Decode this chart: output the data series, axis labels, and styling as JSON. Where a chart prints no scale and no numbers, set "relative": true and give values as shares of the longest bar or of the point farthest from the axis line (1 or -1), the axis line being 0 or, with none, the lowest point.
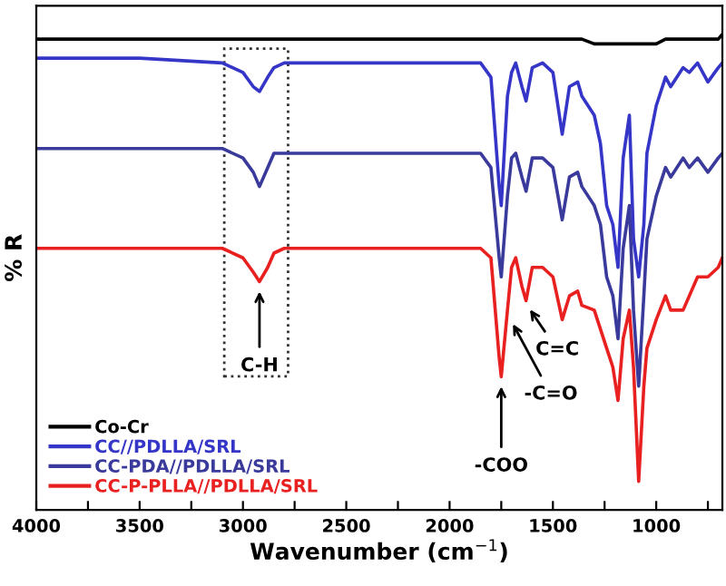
{
  "chart_data": {
    "type": "line",
    "relative": true,
    "xlabel": "Wavenumber (cm$^{−1}$)",
    "ylabel": "% R",
    "x": [
      4000,
      3500,
      3100,
      3000,
      2950,
      2920,
      2880,
      2850,
      2800,
      2000,
      1850,
      1800,
      1760,
      1750,
      1720,
      1700,
      1680,
      1650,
      1630,
      1600,
      1550,
      1500,
      1455,
      1420,
      1380,
      1360,
      1300,
      1270,
      1240,
      1210,
      1185,
      1160,
      1130,
      1110,
      1085,
      1060,
      1045,
      1000,
      955,
      930,
      870,
      840,
      800,
      750,
      700,
      680
    ],
    "series": [
      {
        "name": "Co-Cr",
        "color": "#000000",
        "values": [
          0.99,
          0.99,
          0.99,
          0.99,
          0.99,
          0.99,
          0.99,
          0.99,
          0.99,
          0.99,
          0.99,
          0.99,
          0.99,
          0.99,
          0.99,
          0.99,
          0.99,
          0.99,
          0.99,
          0.99,
          0.99,
          0.99,
          0.99,
          0.99,
          0.99,
          0.99,
          0.98,
          0.98,
          0.98,
          0.98,
          0.98,
          0.98,
          0.98,
          0.98,
          0.98,
          0.98,
          0.98,
          0.98,
          0.99,
          0.99,
          0.99,
          0.99,
          0.99,
          0.99,
          0.99,
          1.0
        ]
      },
      {
        "name": "CC//PDLLA/SRL",
        "color": "#3535c8",
        "values": [
          0.95,
          0.95,
          0.94,
          0.92,
          0.89,
          0.88,
          0.91,
          0.93,
          0.94,
          0.94,
          0.94,
          0.91,
          0.68,
          0.64,
          0.87,
          0.92,
          0.94,
          0.89,
          0.86,
          0.93,
          0.94,
          0.92,
          0.79,
          0.89,
          0.9,
          0.87,
          0.83,
          0.77,
          0.64,
          0.6,
          0.51,
          0.74,
          0.83,
          0.57,
          0.49,
          0.6,
          0.75,
          0.85,
          0.91,
          0.89,
          0.93,
          0.92,
          0.94,
          0.9,
          0.93,
          0.94
        ]
      },
      {
        "name": "CC-PDA//PDLLA/SRL",
        "color": "#3a3a9c",
        "values": [
          0.76,
          0.76,
          0.76,
          0.74,
          0.71,
          0.68,
          0.72,
          0.75,
          0.75,
          0.75,
          0.75,
          0.72,
          0.53,
          0.49,
          0.66,
          0.74,
          0.75,
          0.7,
          0.67,
          0.74,
          0.74,
          0.72,
          0.61,
          0.7,
          0.71,
          0.68,
          0.64,
          0.6,
          0.49,
          0.45,
          0.36,
          0.55,
          0.64,
          0.42,
          0.26,
          0.45,
          0.57,
          0.66,
          0.72,
          0.7,
          0.74,
          0.72,
          0.74,
          0.71,
          0.74,
          0.75
        ]
      },
      {
        "name": "CC-P-PLLA//PDLLA/SRL",
        "color": "#e82020",
        "values": [
          0.55,
          0.55,
          0.55,
          0.53,
          0.5,
          0.48,
          0.51,
          0.54,
          0.55,
          0.55,
          0.55,
          0.53,
          0.32,
          0.28,
          0.42,
          0.51,
          0.53,
          0.47,
          0.44,
          0.51,
          0.51,
          0.49,
          0.4,
          0.45,
          0.46,
          0.43,
          0.42,
          0.38,
          0.34,
          0.3,
          0.23,
          0.36,
          0.42,
          0.3,
          0.06,
          0.26,
          0.34,
          0.4,
          0.45,
          0.42,
          0.42,
          0.45,
          0.49,
          0.49,
          0.51,
          0.53
        ]
      }
    ],
    "xlim": [
      4000,
      680
    ],
    "xticks": [
      4000,
      {
        "value": 3750,
        "label": null
      },
      3500,
      {
        "value": 3250,
        "label": null
      },
      3000,
      {
        "value": 2750,
        "label": null
      },
      2500,
      {
        "value": 2250,
        "label": null
      },
      2000,
      {
        "value": 1750,
        "label": null
      },
      1500,
      {
        "value": 1250,
        "label": null
      },
      1000,
      {
        "value": 750,
        "label": null
      }
    ],
    "tick_labels": "x",
    "legend": "bottom left",
    "grid": false,
    "marker": "none",
    "line_style": "solid",
    "annotations": [
      {
        "text": "C-H",
        "x": 2920,
        "y": 0.47
      },
      {
        "text": "-COO",
        "x": 1750,
        "y": 0.27
      },
      {
        "text": "-C=O",
        "x": 1705,
        "y": 0.4
      },
      {
        "text": "C=C",
        "x": 1625,
        "y": 0.43
      }
    ]
  }
}
